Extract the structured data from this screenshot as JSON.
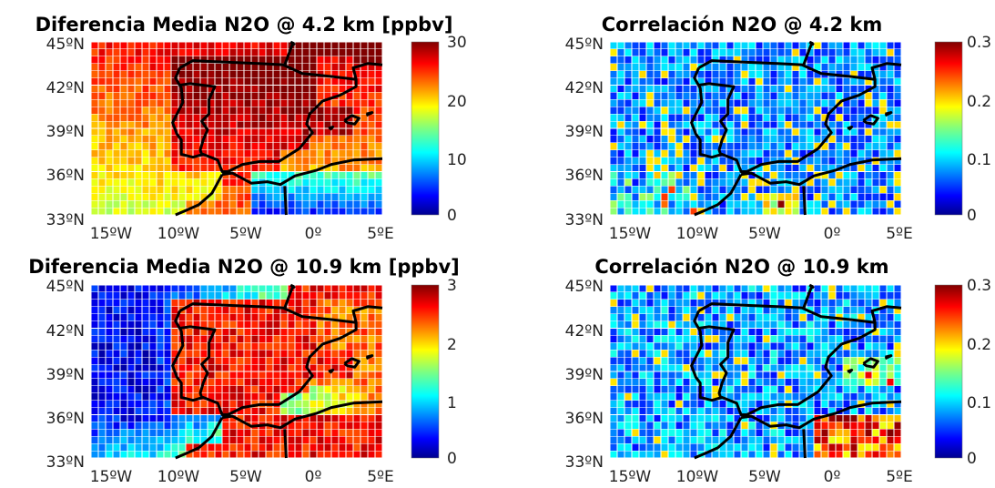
{
  "chart_data": [
    {
      "type": "heatmap",
      "title": "Diferencia Media N2O @ 4.2 km [ppbv]",
      "x_ticks": [
        "15ºW",
        "10ºW",
        "5ºW",
        "0º",
        "5ºE"
      ],
      "y_ticks": [
        "45ºN",
        "42ºN",
        "39ºN",
        "36ºN",
        "33ºN"
      ],
      "x_range": [
        -15,
        5
      ],
      "y_range": [
        33,
        45
      ],
      "grid_resolution_deg": 0.5,
      "colorbar": {
        "min": 0,
        "max": 30,
        "ticks": [
          "30",
          "20",
          "10",
          "0"
        ]
      },
      "colormap": "jet",
      "field": "diff_low"
    },
    {
      "type": "heatmap",
      "title": "Correlación N2O @ 4.2 km",
      "x_ticks": [
        "15ºW",
        "10ºW",
        "5ºW",
        "0º",
        "5ºE"
      ],
      "y_ticks": [
        "45ºN",
        "42ºN",
        "39ºN",
        "36ºN",
        "33ºN"
      ],
      "x_range": [
        -15,
        5
      ],
      "y_range": [
        33,
        45
      ],
      "grid_resolution_deg": 0.5,
      "colorbar": {
        "min": 0,
        "max": 0.3,
        "ticks": [
          "0.3",
          "0.2",
          "0.1",
          "0"
        ]
      },
      "colormap": "jet",
      "field": "corr_low"
    },
    {
      "type": "heatmap",
      "title": "Diferencia Media N2O @ 10.9 km [ppbv]",
      "x_ticks": [
        "15ºW",
        "10ºW",
        "5ºW",
        "0º",
        "5ºE"
      ],
      "y_ticks": [
        "45ºN",
        "42ºN",
        "39ºN",
        "36ºN",
        "33ºN"
      ],
      "x_range": [
        -15,
        5
      ],
      "y_range": [
        33,
        45
      ],
      "grid_resolution_deg": 0.5,
      "colorbar": {
        "min": 0,
        "max": 3,
        "ticks": [
          "3",
          "2",
          "1",
          "0"
        ]
      },
      "colormap": "jet",
      "field": "diff_high"
    },
    {
      "type": "heatmap",
      "title": "Correlación N2O @ 10.9 km",
      "x_ticks": [
        "15ºW",
        "10ºW",
        "5ºW",
        "0º",
        "5ºE"
      ],
      "y_ticks": [
        "45ºN",
        "42ºN",
        "39ºN",
        "36ºN",
        "33ºN"
      ],
      "x_range": [
        -15,
        5
      ],
      "y_range": [
        33,
        45
      ],
      "grid_resolution_deg": 0.5,
      "colorbar": {
        "min": 0,
        "max": 0.3,
        "ticks": [
          "0.3",
          "0.2",
          "0.1",
          "0"
        ]
      },
      "colormap": "jet",
      "field": "corr_high"
    }
  ],
  "colors": {
    "coastline": "#000000",
    "cell_grid": "#ffffff",
    "background": "#ffffff"
  }
}
